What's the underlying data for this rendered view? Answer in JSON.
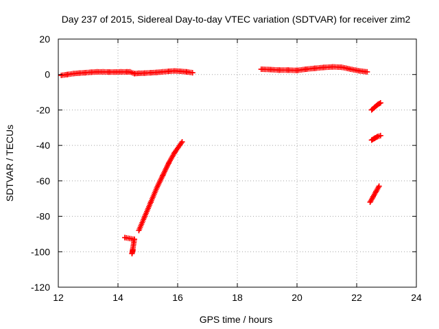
{
  "chart_data": {
    "type": "scatter",
    "title": "Day 237 of 2015, Sidereal Day-to-day VTEC variation (SDTVAR) for receiver zim2",
    "xlabel": "GPS time / hours",
    "ylabel": "SDTVAR / TECUs",
    "xlim": [
      12,
      24
    ],
    "ylim": [
      -120,
      20
    ],
    "x_ticks": [
      12,
      14,
      16,
      18,
      20,
      22,
      24
    ],
    "x_tick_labels": [
      "12",
      "14",
      "16",
      "18",
      "20",
      "22",
      "24"
    ],
    "y_ticks": [
      20,
      0,
      -20,
      -40,
      -60,
      -80,
      -100,
      -120
    ],
    "y_tick_labels": [
      "20",
      "0",
      "-20",
      "-40",
      "-60",
      "-80",
      "-100",
      "-120"
    ],
    "grid": true,
    "marker": "+",
    "color": "#ff0000",
    "series": [
      {
        "name": "segment-1",
        "x": [
          12.1,
          12.3,
          12.5,
          12.7,
          12.9,
          13.1,
          13.3,
          13.5,
          13.7,
          13.9,
          14.1,
          14.3,
          14.4,
          14.55,
          14.7,
          14.9,
          15.1,
          15.3,
          15.5,
          15.7,
          15.9,
          16.1,
          16.3,
          16.5
        ],
        "y": [
          -0.5,
          0,
          0.5,
          0.8,
          1,
          1.3,
          1.5,
          1.5,
          1.4,
          1.4,
          1.5,
          1.5,
          1.5,
          0.5,
          0.7,
          0.8,
          1,
          1.2,
          1.5,
          1.8,
          2,
          1.8,
          1.5,
          1
        ]
      },
      {
        "name": "segment-2",
        "x": [
          14.7,
          14.9,
          15.1,
          15.3,
          15.5,
          15.7,
          15.9,
          16.15
        ],
        "y": [
          -88,
          -80,
          -72,
          -64,
          -57,
          -50,
          -44,
          -38
        ]
      },
      {
        "name": "isolated-points",
        "x": [
          14.23,
          14.55,
          14.47,
          14.5
        ],
        "y": [
          -92,
          -93,
          -101,
          -99
        ]
      },
      {
        "name": "segment-3",
        "x": [
          18.8,
          19.1,
          19.4,
          19.7,
          20.0,
          20.3,
          20.6,
          20.9,
          21.2,
          21.5,
          21.8,
          22.1,
          22.35
        ],
        "y": [
          3,
          2.8,
          2.5,
          2.5,
          2.3,
          3,
          3.5,
          4,
          4.3,
          4.1,
          3,
          2,
          1.5
        ]
      },
      {
        "name": "segment-4",
        "x": [
          22.5,
          22.6,
          22.7,
          22.8
        ],
        "y": [
          -20,
          -18.5,
          -17,
          -16
        ]
      },
      {
        "name": "segment-5",
        "x": [
          22.5,
          22.6,
          22.7,
          22.8
        ],
        "y": [
          -37,
          -36,
          -35,
          -34.5
        ]
      },
      {
        "name": "segment-6",
        "x": [
          22.45,
          22.55,
          22.65,
          22.75
        ],
        "y": [
          -72,
          -69,
          -66,
          -63
        ]
      }
    ]
  }
}
